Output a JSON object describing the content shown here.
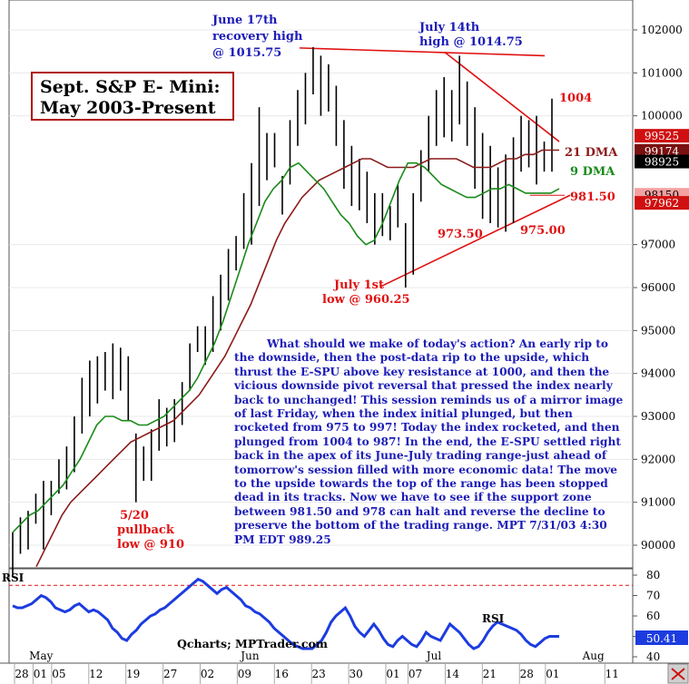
{
  "title": {
    "line1": "Sept. S&P E- Mini:",
    "line2": "May 2003-Present"
  },
  "colors": {
    "bars": "#000000",
    "dma9": "#1a8a1a",
    "dma21": "#8b1a1a",
    "rsi": "#1c3ce0",
    "annotation_red": "#e01010",
    "annotation_blue": "#1c1cb8",
    "trendline": "#e01010"
  },
  "annotations": {
    "june_high": [
      "June 17th",
      "recovery high",
      "@ 1015.75"
    ],
    "july_high": [
      "July 14th",
      "high @ 1014.75"
    ],
    "july_low": [
      "July 1st",
      "low @ 960.25"
    ],
    "may_low": [
      "5/20",
      "pullback",
      "low @ 910"
    ],
    "level_1004": "1004",
    "dma21_label": "21 DMA",
    "dma9_label": "9 DMA",
    "level_98150": "981.50",
    "level_97350": "973.50",
    "level_97500": "975.00"
  },
  "commentary": "What should we make of today's action? An early rip to the downside, then the post-data rip to the upside, which thrust the E-SPU above key resistance at 1000, and then the vicious downside pivot reversal that pressed the index nearly back to unchanged! This session reminds us of a mirror image of last Friday, when the index initial plunged, but then rocketed from 975 to 997! Today the index rocketed, and then plunged from 1004 to 987! In the end, the E-SPU settled right back in the apex of its June-July trading range-just ahead of tomorrow's session filled with more economic data! The move to the upside towards the top of the range has been stopped dead in its tracks. Now we have to see if the support zone between 981.50 and 978 can halt and reverse the decline to preserve the bottom of the trading range.  MPT 7/31/03  4:30 PM EDT 989.25",
  "credit": "Qcharts; MPTrader.com",
  "rsi_panel": {
    "label_left": "RSI",
    "label_series": "RSI",
    "current_value": "50.41",
    "y_ticks": [
      "80",
      "70",
      "60",
      "50",
      "40"
    ],
    "overbought": 75
  },
  "price_axis": {
    "ticks": [
      "102000",
      "101000",
      "100000",
      "97000",
      "96000",
      "95000",
      "94000",
      "93000",
      "92000",
      "91000",
      "90000"
    ],
    "boxes": [
      {
        "value": 99525,
        "text": "99525",
        "bg": "#d01010",
        "fg": "#ffffff"
      },
      {
        "value": 99174,
        "text": "99174",
        "bg": "#7a1010",
        "fg": "#ffffff"
      },
      {
        "value": 98925,
        "text": "98925",
        "bg": "#000000",
        "fg": "#ffffff"
      },
      {
        "value": 98150,
        "text": "98150",
        "bg": "#f4a0a0",
        "fg": "#000000"
      },
      {
        "value": 97962,
        "text": "97962",
        "bg": "#d01010",
        "fg": "#ffffff"
      }
    ]
  },
  "x_axis": {
    "months": [
      {
        "label": "May",
        "x": 0.2
      },
      {
        "label": "Jun",
        "x": 5.9
      },
      {
        "label": "Jul",
        "x": 10.9
      },
      {
        "label": "Aug",
        "x": 15.1
      }
    ],
    "ticks": [
      {
        "label": "28",
        "x": 0
      },
      {
        "label": "01",
        "x": 0.5
      },
      {
        "label": "05",
        "x": 1
      },
      {
        "label": "12",
        "x": 2
      },
      {
        "label": "19",
        "x": 3
      },
      {
        "label": "27",
        "x": 4
      },
      {
        "label": "02",
        "x": 5
      },
      {
        "label": "09",
        "x": 6
      },
      {
        "label": "16",
        "x": 7
      },
      {
        "label": "23",
        "x": 8
      },
      {
        "label": "30",
        "x": 9
      },
      {
        "label": "01",
        "x": 10
      },
      {
        "label": "07",
        "x": 10.6
      },
      {
        "label": "14",
        "x": 11.6
      },
      {
        "label": "21",
        "x": 12.6
      },
      {
        "label": "28",
        "x": 13.6
      },
      {
        "label": "01",
        "x": 14.3
      },
      {
        "label": "11",
        "x": 15.9
      }
    ]
  },
  "chart_data": {
    "type": "ohlc",
    "y_units": "price x100",
    "ylim": [
      89500,
      102500
    ],
    "bars": [
      {
        "h": 90300,
        "l": 89300
      },
      {
        "h": 90650,
        "l": 89800
      },
      {
        "h": 90800,
        "l": 89900
      },
      {
        "h": 91200,
        "l": 90500
      },
      {
        "h": 91500,
        "l": 89900
      },
      {
        "h": 91500,
        "l": 90700
      },
      {
        "h": 92000,
        "l": 91200
      },
      {
        "h": 92300,
        "l": 91300
      },
      {
        "h": 93000,
        "l": 91700
      },
      {
        "h": 93900,
        "l": 92600
      },
      {
        "h": 94300,
        "l": 93000
      },
      {
        "h": 94400,
        "l": 93300
      },
      {
        "h": 94500,
        "l": 93600
      },
      {
        "h": 94700,
        "l": 93400
      },
      {
        "h": 94600,
        "l": 93600
      },
      {
        "h": 94400,
        "l": 92900
      },
      {
        "h": 92600,
        "l": 91000
      },
      {
        "h": 92300,
        "l": 91500
      },
      {
        "h": 92700,
        "l": 91500
      },
      {
        "h": 93400,
        "l": 92200
      },
      {
        "h": 93200,
        "l": 92300
      },
      {
        "h": 93400,
        "l": 92400
      },
      {
        "h": 93800,
        "l": 92800
      },
      {
        "h": 94700,
        "l": 93600
      },
      {
        "h": 95100,
        "l": 94500
      },
      {
        "h": 95100,
        "l": 94200
      },
      {
        "h": 95800,
        "l": 94500
      },
      {
        "h": 96300,
        "l": 95000
      },
      {
        "h": 96900,
        "l": 95700
      },
      {
        "h": 97200,
        "l": 96400
      },
      {
        "h": 98200,
        "l": 96900
      },
      {
        "h": 98900,
        "l": 97000
      },
      {
        "h": 100200,
        "l": 97900
      },
      {
        "h": 99600,
        "l": 98500
      },
      {
        "h": 99600,
        "l": 98800
      },
      {
        "h": 98600,
        "l": 97700
      },
      {
        "h": 99900,
        "l": 98400
      },
      {
        "h": 100600,
        "l": 99300
      },
      {
        "h": 101000,
        "l": 99800
      },
      {
        "h": 101600,
        "l": 100500
      },
      {
        "h": 101400,
        "l": 100000
      },
      {
        "h": 101200,
        "l": 100100
      },
      {
        "h": 100700,
        "l": 99300
      },
      {
        "h": 99900,
        "l": 98300
      },
      {
        "h": 99300,
        "l": 97900
      },
      {
        "h": 99000,
        "l": 97800
      },
      {
        "h": 98700,
        "l": 97500
      },
      {
        "h": 98200,
        "l": 97000
      },
      {
        "h": 98200,
        "l": 97200
      },
      {
        "h": 97900,
        "l": 97100
      },
      {
        "h": 98400,
        "l": 97400
      },
      {
        "h": 97500,
        "l": 96000
      },
      {
        "h": 98200,
        "l": 96300
      },
      {
        "h": 99200,
        "l": 98000
      },
      {
        "h": 100000,
        "l": 98700
      },
      {
        "h": 100600,
        "l": 99300
      },
      {
        "h": 100900,
        "l": 99500
      },
      {
        "h": 100600,
        "l": 99400
      },
      {
        "h": 101400,
        "l": 99800
      },
      {
        "h": 100800,
        "l": 99300
      },
      {
        "h": 100200,
        "l": 98300
      },
      {
        "h": 99600,
        "l": 97600
      },
      {
        "h": 99300,
        "l": 97500
      },
      {
        "h": 98800,
        "l": 97400
      },
      {
        "h": 99100,
        "l": 97300
      },
      {
        "h": 99500,
        "l": 97500
      },
      {
        "h": 100000,
        "l": 98700
      },
      {
        "h": 99900,
        "l": 98800
      },
      {
        "h": 100000,
        "l": 98400
      },
      {
        "h": 99400,
        "l": 98700
      },
      {
        "h": 100400,
        "l": 98700
      }
    ],
    "dma9": [
      90300,
      90500,
      90700,
      90800,
      91000,
      91200,
      91400,
      91700,
      92000,
      92400,
      92800,
      93000,
      93000,
      92900,
      92900,
      92800,
      92800,
      92900,
      93000,
      93200,
      93400,
      93600,
      93900,
      94300,
      94700,
      95200,
      95800,
      96400,
      97000,
      97500,
      98000,
      98300,
      98500,
      98800,
      98900,
      98700,
      98500,
      98300,
      98000,
      97700,
      97500,
      97200,
      97000,
      97100,
      97500,
      98000,
      98500,
      98900,
      98900,
      98800,
      98600,
      98400,
      98300,
      98200,
      98100,
      98100,
      98200,
      98300,
      98300,
      98400,
      98300,
      98200,
      98200,
      98200,
      98200,
      98300
    ],
    "dma21": [
      89500,
      89900,
      90300,
      90700,
      91000,
      91200,
      91400,
      91600,
      91800,
      92000,
      92200,
      92400,
      92500,
      92600,
      92700,
      92800,
      92900,
      93100,
      93300,
      93500,
      93800,
      94100,
      94400,
      94800,
      95200,
      95600,
      96100,
      96600,
      97100,
      97500,
      97800,
      98100,
      98300,
      98500,
      98600,
      98700,
      98800,
      98900,
      99000,
      99000,
      98900,
      98800,
      98800,
      98800,
      98800,
      98900,
      99000,
      99000,
      99000,
      99000,
      98900,
      98800,
      98800,
      98800,
      98900,
      99000,
      99000,
      99100,
      99100,
      99200,
      99200,
      99200
    ],
    "rsi": [
      65,
      64,
      64,
      65,
      66,
      68,
      70,
      69,
      67,
      64,
      63,
      62,
      63,
      65,
      66,
      64,
      62,
      63,
      62,
      60,
      58,
      54,
      52,
      49,
      48,
      51,
      53,
      56,
      58,
      60,
      61,
      63,
      64,
      66,
      68,
      70,
      72,
      74,
      76,
      78,
      77,
      75,
      73,
      71,
      73,
      74,
      72,
      70,
      68,
      65,
      64,
      62,
      61,
      59,
      57,
      54,
      52,
      50,
      48,
      46,
      45,
      44,
      44,
      44,
      46,
      48,
      52,
      57,
      60,
      62,
      64,
      60,
      55,
      52,
      50,
      53,
      56,
      53,
      49,
      46,
      45,
      48,
      50,
      48,
      46,
      45,
      48,
      52,
      50,
      49,
      48,
      52,
      56,
      54,
      52,
      49,
      46,
      44,
      45,
      48,
      52,
      55,
      57,
      56,
      55,
      54,
      53,
      51,
      48,
      46,
      45,
      47,
      49,
      50,
      50,
      50
    ]
  }
}
